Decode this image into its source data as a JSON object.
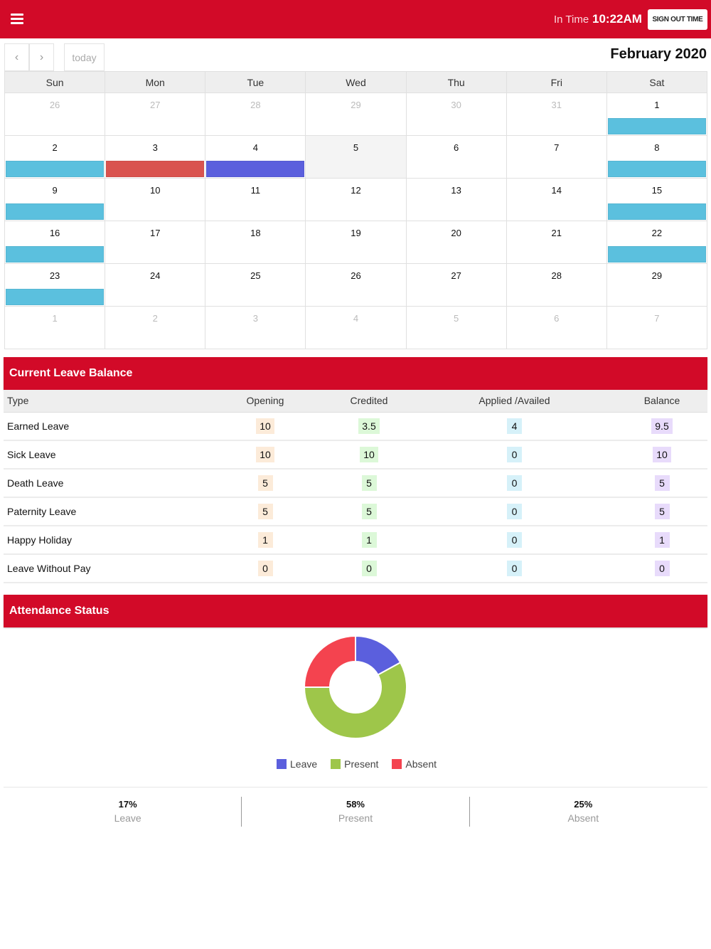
{
  "header": {
    "menu_icon": "hamburger-icon",
    "in_time_label": "In Time",
    "in_time_value": "10:22AM",
    "sign_out_label": "SIGN OUT TIME",
    "brand_color": "#d20a28"
  },
  "calendar": {
    "title": "February 2020",
    "prev_icon": "chevron-left-icon",
    "next_icon": "chevron-right-icon",
    "prev_glyph": "‹",
    "next_glyph": "›",
    "today_label": "today",
    "weekdays": [
      "Sun",
      "Mon",
      "Tue",
      "Wed",
      "Thu",
      "Fri",
      "Sat"
    ],
    "event_colors": {
      "holiday": "#5bc0de",
      "absent": "#d9534f",
      "leave": "#5b5fdd"
    },
    "weeks": [
      [
        {
          "day": "26",
          "other": true
        },
        {
          "day": "27",
          "other": true
        },
        {
          "day": "28",
          "other": true
        },
        {
          "day": "29",
          "other": true
        },
        {
          "day": "30",
          "other": true
        },
        {
          "day": "31",
          "other": true
        },
        {
          "day": "1",
          "event": "holiday"
        }
      ],
      [
        {
          "day": "2",
          "event": "holiday"
        },
        {
          "day": "3",
          "event": "absent"
        },
        {
          "day": "4",
          "event": "leave"
        },
        {
          "day": "5",
          "today": true
        },
        {
          "day": "6"
        },
        {
          "day": "7"
        },
        {
          "day": "8",
          "event": "holiday"
        }
      ],
      [
        {
          "day": "9",
          "event": "holiday"
        },
        {
          "day": "10"
        },
        {
          "day": "11"
        },
        {
          "day": "12"
        },
        {
          "day": "13"
        },
        {
          "day": "14"
        },
        {
          "day": "15",
          "event": "holiday"
        }
      ],
      [
        {
          "day": "16",
          "event": "holiday"
        },
        {
          "day": "17"
        },
        {
          "day": "18"
        },
        {
          "day": "19"
        },
        {
          "day": "20"
        },
        {
          "day": "21"
        },
        {
          "day": "22",
          "event": "holiday"
        }
      ],
      [
        {
          "day": "23",
          "event": "holiday"
        },
        {
          "day": "24"
        },
        {
          "day": "25"
        },
        {
          "day": "26"
        },
        {
          "day": "27"
        },
        {
          "day": "28"
        },
        {
          "day": "29"
        }
      ],
      [
        {
          "day": "1",
          "other": true
        },
        {
          "day": "2",
          "other": true
        },
        {
          "day": "3",
          "other": true
        },
        {
          "day": "4",
          "other": true
        },
        {
          "day": "5",
          "other": true
        },
        {
          "day": "6",
          "other": true
        },
        {
          "day": "7",
          "other": true
        }
      ]
    ]
  },
  "leave_balance": {
    "title": "Current Leave Balance",
    "columns": [
      "Type",
      "Opening",
      "Credited",
      "Applied /Availed",
      "Balance"
    ],
    "rows": [
      {
        "type": "Earned Leave",
        "opening": "10",
        "credited": "3.5",
        "applied": "4",
        "balance": "9.5"
      },
      {
        "type": "Sick Leave",
        "opening": "10",
        "credited": "10",
        "applied": "0",
        "balance": "10"
      },
      {
        "type": "Death Leave",
        "opening": "5",
        "credited": "5",
        "applied": "0",
        "balance": "5"
      },
      {
        "type": "Paternity Leave",
        "opening": "5",
        "credited": "5",
        "applied": "0",
        "balance": "5"
      },
      {
        "type": "Happy Holiday",
        "opening": "1",
        "credited": "1",
        "applied": "0",
        "balance": "1"
      },
      {
        "type": "Leave Without Pay",
        "opening": "0",
        "credited": "0",
        "applied": "0",
        "balance": "0"
      }
    ]
  },
  "attendance": {
    "title": "Attendance Status",
    "chart": {
      "type": "doughnut",
      "segments": [
        {
          "label": "Leave",
          "percent": 17,
          "color": "#5b5fdd"
        },
        {
          "label": "Present",
          "percent": 58,
          "color": "#9ec64a"
        },
        {
          "label": "Absent",
          "percent": 25,
          "color": "#f4434f"
        }
      ]
    },
    "stats": [
      {
        "value": "17%",
        "label": "Leave"
      },
      {
        "value": "58%",
        "label": "Present"
      },
      {
        "value": "25%",
        "label": "Absent"
      }
    ]
  }
}
